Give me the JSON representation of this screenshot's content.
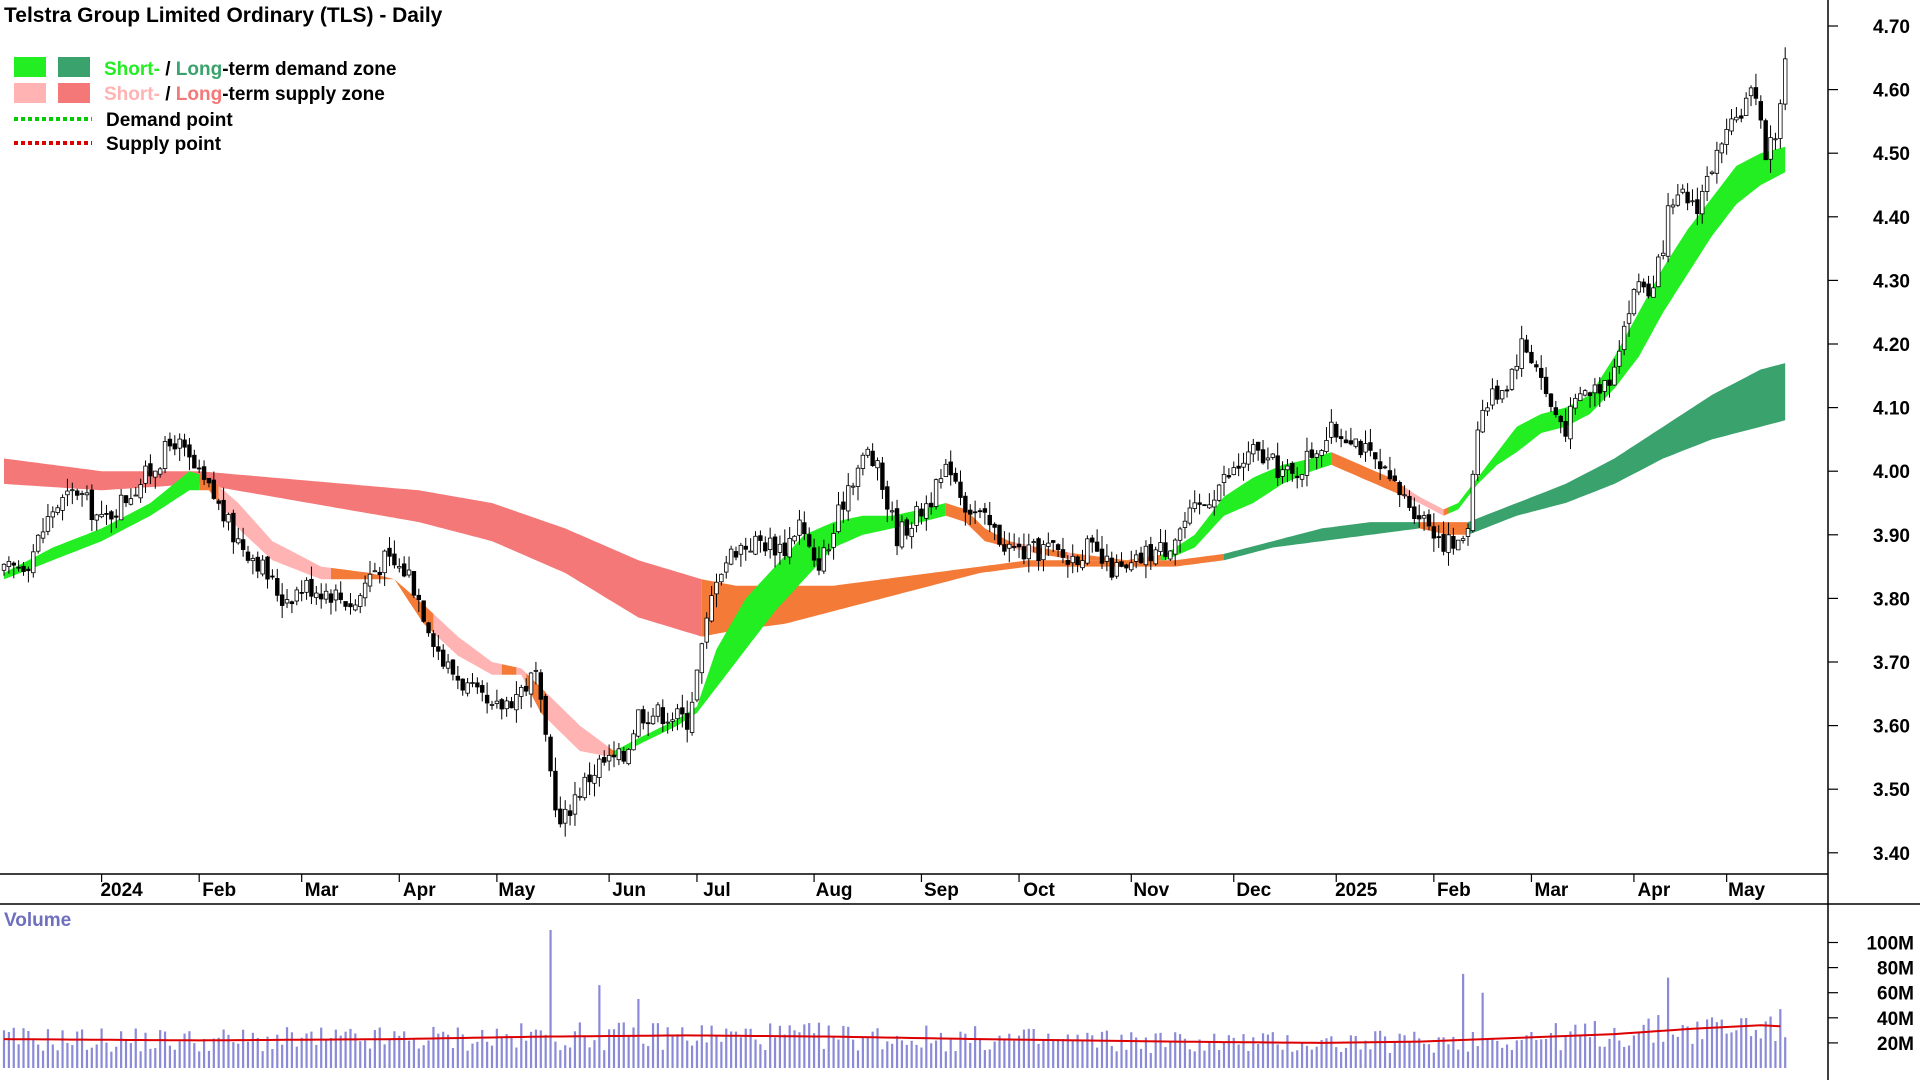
{
  "chart_data": {
    "type": "candlestick",
    "title": "Telstra Group Limited Ordinary (TLS) - Daily",
    "legend": {
      "demand_zone": {
        "short_label": "Short-",
        "sep": " / ",
        "long_label": "Long",
        "rest": "-term demand zone"
      },
      "supply_zone": {
        "short_label": "Short-",
        "sep": " / ",
        "long_label": "Long",
        "rest": "-term supply zone"
      },
      "demand_point": "Demand point",
      "supply_point": "Supply point"
    },
    "colors": {
      "short_demand": "#22ee22",
      "long_demand": "#3aa36d",
      "short_supply": "#ffb3b3",
      "long_supply": "#f47878",
      "transition": "#f47a38",
      "demand_point": "#00cc00",
      "supply_point": "#dd0000",
      "volume_bar": "#8a8ad8",
      "volume_ma": "#dd0000",
      "axis": "#000000"
    },
    "price_axis": {
      "ylim": [
        3.35,
        4.73
      ],
      "ticks": [
        "3.40",
        "3.50",
        "3.60",
        "3.70",
        "3.80",
        "3.90",
        "4.00",
        "4.10",
        "4.20",
        "4.30",
        "4.40",
        "4.50",
        "4.60",
        "4.70"
      ]
    },
    "x_axis": {
      "labels": [
        "2024",
        "Feb",
        "Mar",
        "Apr",
        "May",
        "Jun",
        "Jul",
        "Aug",
        "Sep",
        "Oct",
        "Nov",
        "Dec",
        "2025",
        "Feb",
        "Mar",
        "Apr",
        "May"
      ],
      "label_index": [
        20,
        40,
        61,
        81,
        101,
        124,
        142,
        166,
        188,
        208,
        231,
        252,
        273,
        293,
        313,
        334,
        353
      ]
    },
    "volume_axis": {
      "title": "Volume",
      "ticks": [
        "20M",
        "40M",
        "60M",
        "80M",
        "100M"
      ],
      "ylim": [
        0,
        130
      ]
    },
    "price_path": [
      [
        0,
        3.84
      ],
      [
        5,
        3.86
      ],
      [
        10,
        3.94
      ],
      [
        15,
        3.97
      ],
      [
        20,
        3.92
      ],
      [
        25,
        3.96
      ],
      [
        30,
        4.0
      ],
      [
        35,
        4.05
      ],
      [
        40,
        3.99
      ],
      [
        43,
        3.96
      ],
      [
        47,
        3.9
      ],
      [
        52,
        3.86
      ],
      [
        57,
        3.8
      ],
      [
        62,
        3.82
      ],
      [
        67,
        3.81
      ],
      [
        72,
        3.79
      ],
      [
        75,
        3.84
      ],
      [
        78,
        3.86
      ],
      [
        83,
        3.84
      ],
      [
        86,
        3.78
      ],
      [
        90,
        3.7
      ],
      [
        95,
        3.66
      ],
      [
        100,
        3.62
      ],
      [
        105,
        3.65
      ],
      [
        109,
        3.68
      ],
      [
        111,
        3.57
      ],
      [
        114,
        3.44
      ],
      [
        117,
        3.49
      ],
      [
        122,
        3.54
      ],
      [
        127,
        3.55
      ],
      [
        130,
        3.62
      ],
      [
        135,
        3.62
      ],
      [
        140,
        3.61
      ],
      [
        143,
        3.72
      ],
      [
        146,
        3.84
      ],
      [
        150,
        3.88
      ],
      [
        155,
        3.89
      ],
      [
        160,
        3.88
      ],
      [
        163,
        3.92
      ],
      [
        166,
        3.85
      ],
      [
        169,
        3.88
      ],
      [
        173,
        3.98
      ],
      [
        177,
        4.03
      ],
      [
        179,
        4.0
      ],
      [
        183,
        3.9
      ],
      [
        187,
        3.93
      ],
      [
        191,
        3.97
      ],
      [
        194,
        4.01
      ],
      [
        197,
        3.95
      ],
      [
        201,
        3.92
      ],
      [
        206,
        3.88
      ],
      [
        210,
        3.87
      ],
      [
        214,
        3.88
      ],
      [
        218,
        3.86
      ],
      [
        222,
        3.88
      ],
      [
        226,
        3.85
      ],
      [
        230,
        3.84
      ],
      [
        234,
        3.87
      ],
      [
        238,
        3.88
      ],
      [
        242,
        3.92
      ],
      [
        246,
        3.95
      ],
      [
        249,
        3.98
      ],
      [
        252,
        4.0
      ],
      [
        256,
        4.03
      ],
      [
        260,
        4.01
      ],
      [
        264,
        3.99
      ],
      [
        268,
        4.03
      ],
      [
        272,
        4.06
      ],
      [
        276,
        4.06
      ],
      [
        280,
        4.02
      ],
      [
        284,
        3.98
      ],
      [
        288,
        3.95
      ],
      [
        292,
        3.92
      ],
      [
        295,
        3.89
      ],
      [
        298,
        3.88
      ],
      [
        300,
        3.92
      ],
      [
        302,
        4.08
      ],
      [
        305,
        4.12
      ],
      [
        308,
        4.14
      ],
      [
        311,
        4.2
      ],
      [
        314,
        4.17
      ],
      [
        317,
        4.1
      ],
      [
        320,
        4.07
      ],
      [
        323,
        4.12
      ],
      [
        326,
        4.13
      ],
      [
        329,
        4.15
      ],
      [
        332,
        4.23
      ],
      [
        335,
        4.3
      ],
      [
        338,
        4.28
      ],
      [
        341,
        4.4
      ],
      [
        344,
        4.43
      ],
      [
        347,
        4.42
      ],
      [
        350,
        4.48
      ],
      [
        353,
        4.52
      ],
      [
        356,
        4.57
      ],
      [
        359,
        4.6
      ],
      [
        361,
        4.5
      ],
      [
        363,
        4.53
      ],
      [
        365,
        4.64
      ]
    ],
    "short_zone": [
      [
        0,
        3.83,
        3.84
      ],
      [
        10,
        3.86,
        3.88
      ],
      [
        20,
        3.89,
        3.91
      ],
      [
        30,
        3.93,
        3.95
      ],
      [
        38,
        3.97,
        4.0
      ],
      [
        42,
        3.97,
        3.99
      ],
      [
        48,
        3.91,
        3.95
      ],
      [
        55,
        3.86,
        3.89
      ],
      [
        65,
        3.83,
        3.85
      ],
      [
        75,
        3.83,
        3.84
      ],
      [
        80,
        3.83,
        3.83
      ],
      [
        86,
        3.76,
        3.79
      ],
      [
        93,
        3.71,
        3.74
      ],
      [
        100,
        3.68,
        3.7
      ],
      [
        106,
        3.68,
        3.69
      ],
      [
        110,
        3.62,
        3.66
      ],
      [
        118,
        3.56,
        3.6
      ],
      [
        125,
        3.55,
        3.56
      ],
      [
        130,
        3.57,
        3.58
      ],
      [
        138,
        3.6,
        3.61
      ],
      [
        142,
        3.62,
        3.63
      ],
      [
        146,
        3.66,
        3.72
      ],
      [
        152,
        3.72,
        3.8
      ],
      [
        158,
        3.78,
        3.85
      ],
      [
        164,
        3.83,
        3.9
      ],
      [
        170,
        3.88,
        3.92
      ],
      [
        176,
        3.9,
        3.93
      ],
      [
        182,
        3.91,
        3.93
      ],
      [
        188,
        3.92,
        3.94
      ],
      [
        193,
        3.93,
        3.95
      ],
      [
        197,
        3.92,
        3.94
      ],
      [
        201,
        3.89,
        3.91
      ],
      [
        206,
        3.88,
        3.89
      ],
      [
        212,
        3.87,
        3.88
      ],
      [
        220,
        3.86,
        3.87
      ],
      [
        230,
        3.86,
        3.86
      ],
      [
        238,
        3.86,
        3.87
      ],
      [
        244,
        3.88,
        3.9
      ],
      [
        250,
        3.93,
        3.96
      ],
      [
        256,
        3.95,
        3.99
      ],
      [
        262,
        3.98,
        4.01
      ],
      [
        268,
        4.0,
        4.02
      ],
      [
        272,
        4.01,
        4.03
      ],
      [
        278,
        3.99,
        4.01
      ],
      [
        284,
        3.97,
        3.99
      ],
      [
        290,
        3.95,
        3.96
      ],
      [
        295,
        3.93,
        3.94
      ],
      [
        298,
        3.94,
        3.95
      ],
      [
        302,
        3.98,
        3.99
      ],
      [
        306,
        4.01,
        4.03
      ],
      [
        310,
        4.03,
        4.07
      ],
      [
        315,
        4.06,
        4.09
      ],
      [
        320,
        4.07,
        4.1
      ],
      [
        325,
        4.09,
        4.12
      ],
      [
        330,
        4.13,
        4.18
      ],
      [
        335,
        4.18,
        4.25
      ],
      [
        340,
        4.25,
        4.32
      ],
      [
        345,
        4.31,
        4.38
      ],
      [
        350,
        4.37,
        4.43
      ],
      [
        355,
        4.42,
        4.48
      ],
      [
        360,
        4.45,
        4.5
      ],
      [
        365,
        4.47,
        4.51
      ]
    ],
    "long_zone": [
      [
        0,
        4.02,
        3.98
      ],
      [
        20,
        4.0,
        3.97
      ],
      [
        40,
        4.0,
        3.98
      ],
      [
        55,
        3.99,
        3.96
      ],
      [
        70,
        3.98,
        3.94
      ],
      [
        85,
        3.97,
        3.92
      ],
      [
        100,
        3.95,
        3.89
      ],
      [
        115,
        3.91,
        3.84
      ],
      [
        130,
        3.86,
        3.77
      ],
      [
        143,
        3.83,
        3.74
      ],
      [
        150,
        3.82,
        3.75
      ],
      [
        160,
        3.82,
        3.76
      ],
      [
        170,
        3.82,
        3.78
      ],
      [
        180,
        3.83,
        3.8
      ],
      [
        190,
        3.84,
        3.82
      ],
      [
        200,
        3.85,
        3.84
      ],
      [
        210,
        3.86,
        3.85
      ],
      [
        220,
        3.86,
        3.85
      ],
      [
        230,
        3.86,
        3.85
      ],
      [
        240,
        3.86,
        3.85
      ],
      [
        250,
        3.87,
        3.86
      ],
      [
        260,
        3.89,
        3.88
      ],
      [
        270,
        3.91,
        3.89
      ],
      [
        280,
        3.92,
        3.9
      ],
      [
        290,
        3.92,
        3.91
      ],
      [
        296,
        3.92,
        3.9
      ],
      [
        300,
        3.92,
        3.9
      ],
      [
        310,
        3.95,
        3.93
      ],
      [
        320,
        3.98,
        3.95
      ],
      [
        330,
        4.02,
        3.98
      ],
      [
        340,
        4.07,
        4.02
      ],
      [
        350,
        4.12,
        4.05
      ],
      [
        360,
        4.16,
        4.07
      ],
      [
        365,
        4.17,
        4.08
      ]
    ],
    "long_demand_from": 250,
    "long_transition_ranges": [
      [
        143,
        250
      ],
      [
        290,
        300
      ]
    ],
    "volume_spikes": [
      [
        112,
        110
      ],
      [
        122,
        66
      ],
      [
        130,
        55
      ],
      [
        299,
        75
      ],
      [
        303,
        60
      ],
      [
        341,
        72
      ]
    ],
    "volume_ma": [
      [
        0,
        23
      ],
      [
        40,
        22
      ],
      [
        80,
        23
      ],
      [
        110,
        25
      ],
      [
        140,
        26
      ],
      [
        170,
        25
      ],
      [
        200,
        23
      ],
      [
        240,
        21
      ],
      [
        270,
        20
      ],
      [
        290,
        21
      ],
      [
        310,
        24
      ],
      [
        330,
        27
      ],
      [
        345,
        31
      ],
      [
        360,
        34
      ],
      [
        365,
        33
      ]
    ]
  }
}
